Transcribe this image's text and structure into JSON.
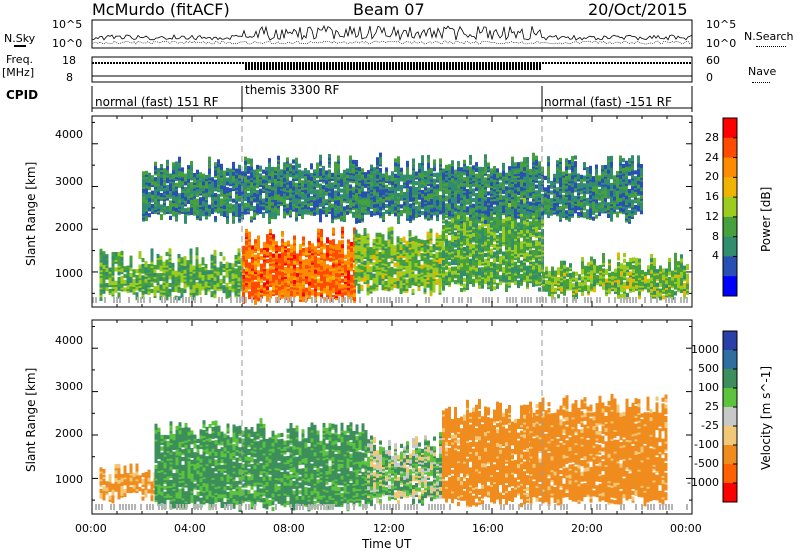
{
  "header": {
    "station": "McMurdo (fitACF)",
    "beam": "Beam 07",
    "date": "20/Oct/2015"
  },
  "left_labels": {
    "nsky": "N.Sky",
    "freq": "Freq.",
    "freq_unit": "[MHz]",
    "cpid": "CPID"
  },
  "right_labels": {
    "nsearch": "N.Search",
    "nave": "Nave"
  },
  "noise_axis": {
    "left_ticks": [
      "10^5",
      "10^0"
    ],
    "right_ticks": [
      "10^5",
      "10^0"
    ]
  },
  "freq_axis": {
    "left_ticks": [
      "18",
      "8"
    ],
    "right_ticks": [
      "60",
      "0"
    ]
  },
  "cpid_segments": [
    {
      "label": "normal (fast) 151 RF",
      "start_hour": 0,
      "end_hour": 6
    },
    {
      "label": "themis 3300 RF",
      "start_hour": 6,
      "end_hour": 18
    },
    {
      "label": "normal (fast) -151 RF",
      "start_hour": 18,
      "end_hour": 24
    }
  ],
  "xaxis": {
    "label": "Time UT",
    "ticks": [
      "00:00",
      "04:00",
      "08:00",
      "12:00",
      "16:00",
      "20:00",
      "00:00"
    ]
  },
  "power_panel": {
    "ylabel": "Slant Range [km]",
    "yticks": [
      "4000",
      "3000",
      "2000",
      "1000"
    ],
    "cbar_label": "Power [dB]",
    "cbar_ticks": [
      "28",
      "24",
      "20",
      "16",
      "12",
      "8",
      "4"
    ],
    "cbar_colors": [
      "#ff0000",
      "#ff4a00",
      "#ff8c00",
      "#f0b400",
      "#9ccd1e",
      "#46a03c",
      "#328c6e",
      "#2850b4",
      "#0000ff"
    ]
  },
  "velocity_panel": {
    "ylabel": "Slant Range [km]",
    "yticks": [
      "4000",
      "3000",
      "2000",
      "1000"
    ],
    "cbar_label": "Velocity [m s^-1]",
    "cbar_ticks": [
      "1000",
      "500",
      "100",
      "25",
      "-25",
      "-100",
      "-500",
      "-1000"
    ],
    "cbar_colors": [
      "#2a3fa8",
      "#2f6ea0",
      "#3c8f5a",
      "#5cc43c",
      "#c8c8c8",
      "#f0c878",
      "#f08c1e",
      "#ff6000",
      "#ff0000"
    ]
  },
  "chart_data": [
    {
      "type": "heatmap",
      "title": "McMurdo (fitACF)  Beam 07  20/Oct/2015",
      "xlabel": "Time UT",
      "ylabel": "Slant Range [km]",
      "xlim": [
        0,
        24
      ],
      "ylim": [
        180,
        4650
      ],
      "value_label": "Power [dB]",
      "value_range": [
        0,
        32
      ],
      "echo_regions": [
        {
          "t_start": 0.3,
          "t_end": 6.0,
          "range_low": 500,
          "range_high": 1300,
          "value": 12
        },
        {
          "t_start": 6.0,
          "t_end": 10.5,
          "range_low": 400,
          "range_high": 1800,
          "value": 26
        },
        {
          "t_start": 10.5,
          "t_end": 14.0,
          "range_low": 600,
          "range_high": 1800,
          "value": 14
        },
        {
          "t_start": 14.0,
          "t_end": 18.0,
          "range_low": 700,
          "range_high": 2600,
          "value": 12
        },
        {
          "t_start": 18.0,
          "t_end": 23.8,
          "range_low": 500,
          "range_high": 1200,
          "value": 14
        },
        {
          "t_start": 2.0,
          "t_end": 22.0,
          "range_low": 2300,
          "range_high": 3500,
          "value": 8
        }
      ]
    },
    {
      "type": "heatmap",
      "xlabel": "Time UT",
      "ylabel": "Slant Range [km]",
      "xlim": [
        0,
        24
      ],
      "ylim": [
        180,
        4650
      ],
      "value_label": "Velocity [m s^-1]",
      "value_range": [
        -1000,
        1000
      ],
      "echo_regions": [
        {
          "t_start": 0.3,
          "t_end": 2.5,
          "range_low": 600,
          "range_high": 1100,
          "value": -150
        },
        {
          "t_start": 2.5,
          "t_end": 11.0,
          "range_low": 400,
          "range_high": 2100,
          "value": 150
        },
        {
          "t_start": 11.0,
          "t_end": 14.0,
          "range_low": 500,
          "range_high": 1800,
          "value": 60
        },
        {
          "t_start": 14.0,
          "t_end": 17.5,
          "range_low": 500,
          "range_high": 2600,
          "value": -200
        },
        {
          "t_start": 17.5,
          "t_end": 23.0,
          "range_low": 500,
          "range_high": 2700,
          "value": -200
        }
      ]
    }
  ]
}
